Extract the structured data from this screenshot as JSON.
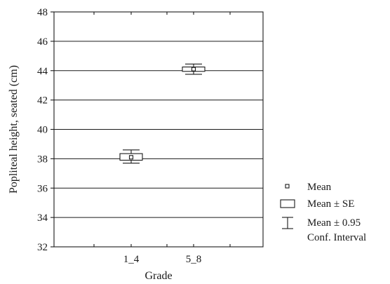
{
  "chart_data": {
    "type": "box",
    "xlabel": "Grade",
    "ylabel": "Popliteal height, seated (cm)",
    "ylim": [
      32,
      48
    ],
    "yticks": [
      32,
      34,
      36,
      38,
      40,
      42,
      44,
      46,
      48
    ],
    "grid": "horizontal",
    "categories": [
      "1_4",
      "5_8"
    ],
    "series": [
      {
        "category": "1_4",
        "mean": 38.1,
        "se_low": 37.9,
        "se_high": 38.35,
        "ci_low": 37.7,
        "ci_high": 38.6
      },
      {
        "category": "5_8",
        "mean": 44.1,
        "se_low": 43.95,
        "se_high": 44.25,
        "ci_low": 43.75,
        "ci_high": 44.45
      }
    ],
    "legend": {
      "position": "right",
      "entries": [
        {
          "symbol": "point",
          "label": "Mean"
        },
        {
          "symbol": "box",
          "label": "Mean ± SE"
        },
        {
          "symbol": "whisker",
          "label": "Mean ± 0.95",
          "label2": "Conf. Interval"
        }
      ]
    }
  }
}
